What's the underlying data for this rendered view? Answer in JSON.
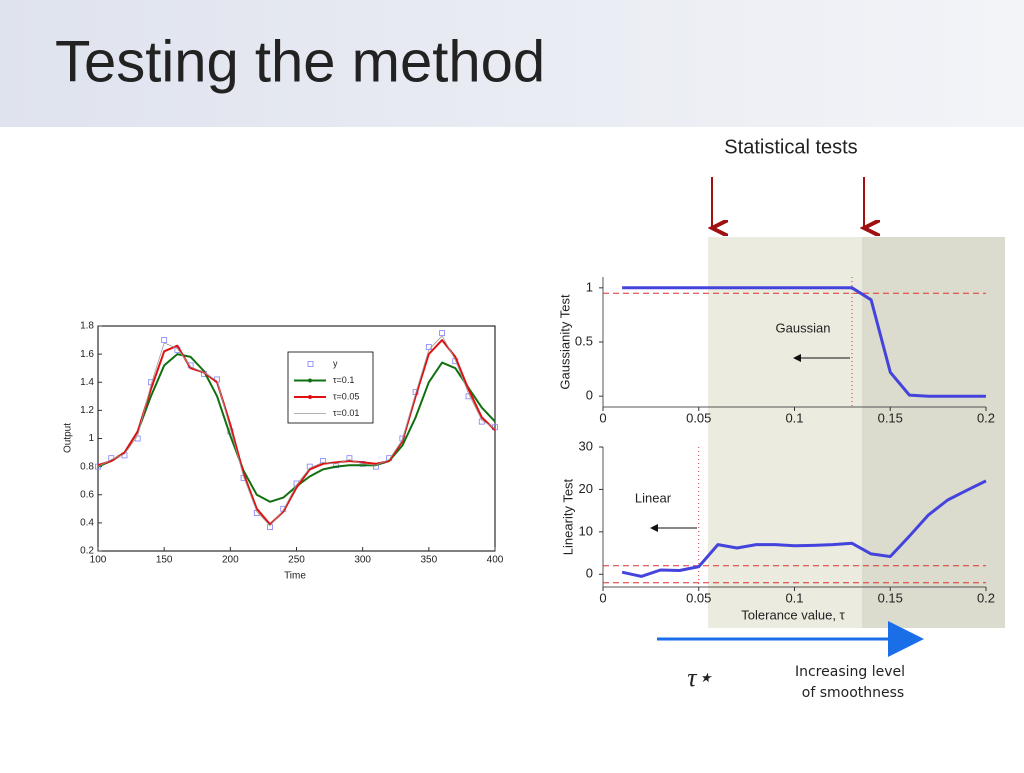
{
  "slide_title": "Testing the method",
  "header": "Statistical tests",
  "tau_star": "τ⋆",
  "smoothness_note": [
    "Increasing level",
    "of smoothness"
  ],
  "chart_data": [
    {
      "type": "line",
      "xlabel": "Time",
      "ylabel": "Output",
      "x": [
        100,
        110,
        120,
        130,
        140,
        150,
        160,
        170,
        180,
        190,
        200,
        210,
        220,
        230,
        240,
        250,
        260,
        270,
        280,
        290,
        300,
        310,
        320,
        330,
        340,
        350,
        360,
        370,
        380,
        390,
        400
      ],
      "xlim": [
        100,
        400
      ],
      "ylim": [
        0.2,
        1.8
      ],
      "xticks": [
        100,
        150,
        200,
        250,
        300,
        350,
        400
      ],
      "yticks": [
        0.2,
        0.4,
        0.6,
        0.8,
        1,
        1.2,
        1.4,
        1.6,
        1.8
      ],
      "legend": "upper-center",
      "series": [
        {
          "name": "y",
          "color": "#8080ff",
          "marker": "square",
          "values": [
            0.8,
            0.86,
            0.88,
            1.0,
            1.4,
            1.7,
            1.63,
            1.52,
            1.46,
            1.42,
            1.05,
            0.72,
            0.47,
            0.37,
            0.5,
            0.68,
            0.8,
            0.84,
            0.81,
            0.86,
            0.82,
            0.8,
            0.86,
            1.0,
            1.33,
            1.65,
            1.75,
            1.55,
            1.3,
            1.12,
            1.08
          ]
        },
        {
          "name": "τ=0.1",
          "color": "#107010",
          "values": [
            0.8,
            0.84,
            0.9,
            1.05,
            1.3,
            1.52,
            1.6,
            1.58,
            1.48,
            1.3,
            1.02,
            0.77,
            0.6,
            0.55,
            0.58,
            0.66,
            0.73,
            0.78,
            0.8,
            0.81,
            0.81,
            0.81,
            0.84,
            0.95,
            1.15,
            1.4,
            1.54,
            1.5,
            1.36,
            1.22,
            1.12
          ]
        },
        {
          "name": "τ=0.05",
          "color": "#e01010",
          "values": [
            0.81,
            0.84,
            0.9,
            1.05,
            1.35,
            1.62,
            1.66,
            1.5,
            1.47,
            1.4,
            1.1,
            0.75,
            0.5,
            0.39,
            0.48,
            0.65,
            0.78,
            0.82,
            0.83,
            0.84,
            0.83,
            0.82,
            0.84,
            0.98,
            1.3,
            1.6,
            1.7,
            1.58,
            1.35,
            1.15,
            1.06
          ]
        },
        {
          "name": "τ=0.01",
          "color": "#999999",
          "values": [
            0.8,
            0.85,
            0.89,
            1.02,
            1.38,
            1.68,
            1.64,
            1.51,
            1.47,
            1.41,
            1.07,
            0.73,
            0.48,
            0.38,
            0.49,
            0.67,
            0.79,
            0.83,
            0.82,
            0.85,
            0.82,
            0.81,
            0.85,
            0.99,
            1.32,
            1.63,
            1.73,
            1.56,
            1.32,
            1.13,
            1.07
          ]
        }
      ]
    },
    {
      "type": "line",
      "ylabel": "Gaussianity Test",
      "annotation": "Gaussian",
      "x": [
        0.01,
        0.02,
        0.03,
        0.04,
        0.05,
        0.06,
        0.07,
        0.08,
        0.09,
        0.1,
        0.11,
        0.12,
        0.13,
        0.14,
        0.15,
        0.16,
        0.17,
        0.18,
        0.19,
        0.2
      ],
      "values": [
        1,
        1,
        1,
        1,
        1,
        1,
        1,
        1,
        1,
        1,
        1,
        1,
        1,
        0.89,
        0.22,
        0.01,
        0,
        0,
        0,
        0
      ],
      "color": "#4444dd",
      "xlim": [
        0,
        0.2
      ],
      "ylim": [
        -0.1,
        1.1
      ],
      "xticks": [
        0,
        0.05,
        0.1,
        0.15,
        0.2
      ],
      "yticks": [
        0,
        0.5,
        1
      ],
      "ref_y": [
        0.95
      ],
      "ref_x": 0.13
    },
    {
      "type": "line",
      "ylabel": "Linearity Test",
      "xlabel": "Tolerance value, τ",
      "annotation": "Linear",
      "x": [
        0.01,
        0.02,
        0.03,
        0.04,
        0.05,
        0.06,
        0.07,
        0.08,
        0.09,
        0.1,
        0.11,
        0.12,
        0.13,
        0.14,
        0.15,
        0.16,
        0.17,
        0.18,
        0.19,
        0.2
      ],
      "values": [
        0.5,
        -0.5,
        1,
        0.9,
        1.8,
        7,
        6.2,
        7,
        7,
        6.7,
        6.8,
        7,
        7.3,
        4.8,
        4.2,
        9,
        14,
        17.5,
        19.8,
        22
      ],
      "color": "#4444dd",
      "xlim": [
        0,
        0.2
      ],
      "ylim": [
        -3,
        30
      ],
      "xticks": [
        0,
        0.05,
        0.1,
        0.15,
        0.2
      ],
      "yticks": [
        0,
        10,
        20,
        30
      ],
      "ref_y": [
        2,
        -2
      ],
      "ref_x": 0.05
    }
  ]
}
